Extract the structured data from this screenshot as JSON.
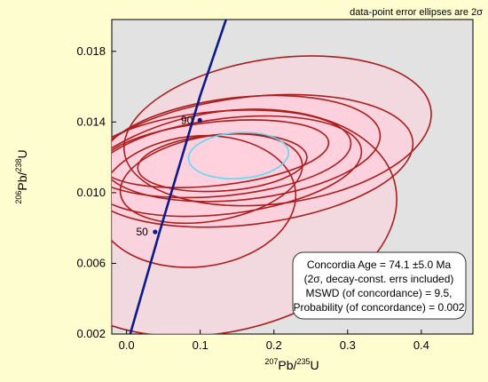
{
  "chart_data": {
    "type": "scatter",
    "note": "data-point error ellipses are 2σ",
    "xlabel": {
      "pre": "",
      "sup1": "207",
      "mid": "Pb/",
      "sup2": "235",
      "post": "U"
    },
    "ylabel": {
      "pre": "",
      "sup1": "206",
      "mid": "Pb/",
      "sup2": "238",
      "post": "U"
    },
    "xlim": [
      -0.02,
      0.47
    ],
    "ylim": [
      0.002,
      0.0198
    ],
    "x_ticks": [
      0.0,
      0.1,
      0.2,
      0.3,
      0.4
    ],
    "x_tick_labels": [
      "0.0",
      "0.1",
      "0.2",
      "0.3",
      "0.4"
    ],
    "y_ticks": [
      0.002,
      0.006,
      0.01,
      0.014,
      0.018
    ],
    "y_tick_labels": [
      "0.002",
      "0.006",
      "0.010",
      "0.014",
      "0.018"
    ],
    "grid": false,
    "concordia": {
      "color": "#0a1a8c",
      "points": [
        [
          0.005,
          0.002
        ],
        [
          0.045,
          0.0078
        ],
        [
          0.1,
          0.0155
        ],
        [
          0.135,
          0.0198
        ]
      ],
      "age_marks": [
        {
          "label": "50",
          "x": 0.0388,
          "y": 0.00778
        },
        {
          "label": "90",
          "x": 0.0995,
          "y": 0.0141
        }
      ]
    },
    "error_ellipses": {
      "color": "#aa1e1e",
      "fill": "#ffd0dc",
      "items": [
        {
          "cx": 0.205,
          "cy": 0.0135,
          "rx": 0.21,
          "ry": 0.0041,
          "rotation": -8
        },
        {
          "cx": 0.155,
          "cy": 0.0125,
          "rx": 0.19,
          "ry": 0.0029,
          "rotation": -6
        },
        {
          "cx": 0.125,
          "cy": 0.0122,
          "rx": 0.18,
          "ry": 0.0024,
          "rotation": -5
        },
        {
          "cx": 0.135,
          "cy": 0.0115,
          "rx": 0.185,
          "ry": 0.0027,
          "rotation": -7
        },
        {
          "cx": 0.12,
          "cy": 0.0122,
          "rx": 0.155,
          "ry": 0.0018,
          "rotation": -6
        },
        {
          "cx": 0.165,
          "cy": 0.0118,
          "rx": 0.225,
          "ry": 0.0036,
          "rotation": -7
        },
        {
          "cx": 0.115,
          "cy": 0.0108,
          "rx": 0.125,
          "ry": 0.0024,
          "rotation": -10
        },
        {
          "cx": 0.13,
          "cy": 0.0117,
          "rx": 0.115,
          "ry": 0.0016,
          "rotation": -4
        },
        {
          "cx": 0.095,
          "cy": 0.0095,
          "rx": 0.135,
          "ry": 0.0037,
          "rotation": -6
        },
        {
          "cx": 0.125,
          "cy": 0.0083,
          "rx": 0.245,
          "ry": 0.0062,
          "rotation": -12
        }
      ]
    },
    "mean_ellipse": {
      "color": "#5fd9f2",
      "cx": 0.152,
      "cy": 0.0121,
      "rx": 0.068,
      "ry": 0.0013,
      "rotation": -4
    },
    "info_box": {
      "lines": [
        "Concordia Age = 74.1 ±5.0 Ma",
        "(2σ, decay-const. errs included)",
        "MSWD (of concordance) = 9.5,",
        "Probability (of concordance) = 0.002"
      ]
    },
    "colors": {
      "page_background": "#fdfdd0",
      "plot_background": "#e2e2e2"
    }
  }
}
